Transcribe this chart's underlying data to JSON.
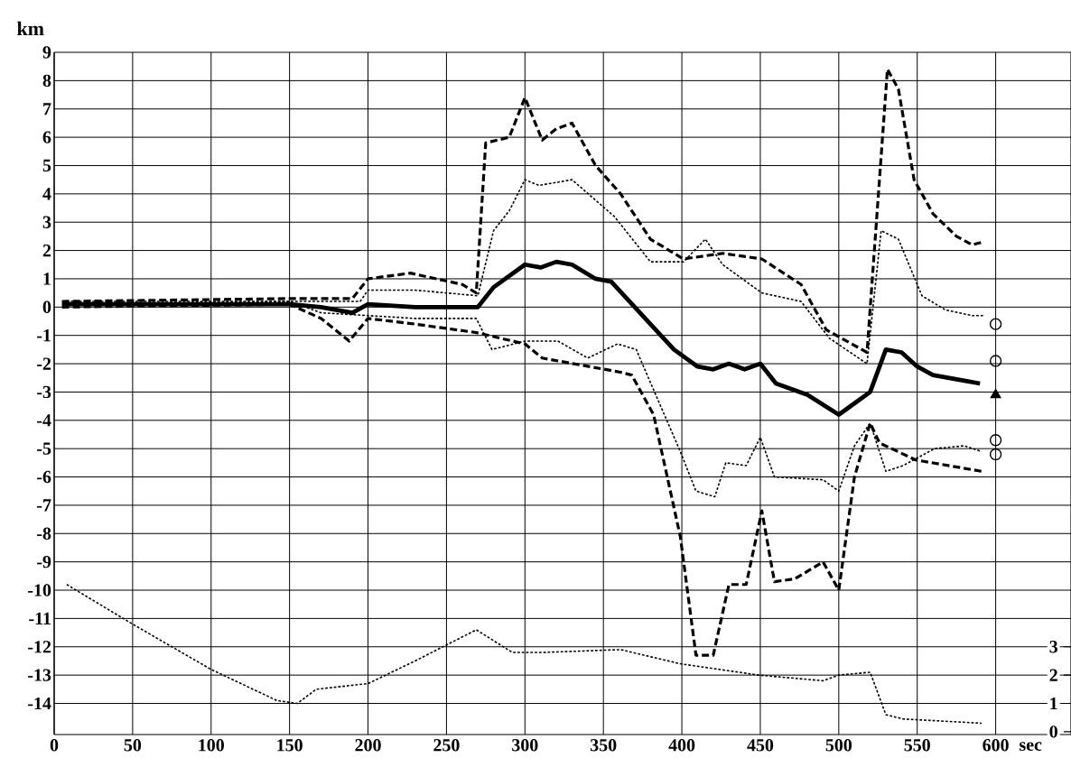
{
  "chart_data": {
    "type": "line",
    "xlabel": "sec",
    "ylabel": "km",
    "xlim": [
      0,
      648
    ],
    "ylim": [
      -15.1,
      9
    ],
    "y2lim": [
      -0.1,
      24
    ],
    "xticks": [
      0,
      50,
      100,
      150,
      200,
      250,
      300,
      350,
      400,
      450,
      500,
      550,
      600
    ],
    "yticks": [
      -14,
      -13,
      -12,
      -11,
      -10,
      -9,
      -8,
      -7,
      -6,
      -5,
      -4,
      -3,
      -2,
      -1,
      0,
      1,
      2,
      3,
      4,
      5,
      6,
      7,
      8,
      9
    ],
    "y2ticks": [
      0,
      1,
      2,
      3
    ],
    "grid": true,
    "series": [
      {
        "color": "#000000",
        "line_style": "solid",
        "x": [
          5,
          50,
          100,
          150,
          170,
          190,
          200,
          230,
          270,
          280,
          300,
          310,
          320,
          330,
          345,
          355,
          370,
          385,
          395,
          410,
          420,
          430,
          440,
          450,
          460,
          480,
          500,
          510,
          520,
          530,
          540,
          550,
          560,
          580,
          590
        ],
        "values": [
          0.1,
          0.1,
          0.1,
          0.1,
          0.0,
          -0.2,
          0.1,
          0.0,
          0.0,
          0.7,
          1.5,
          1.4,
          1.6,
          1.5,
          1.0,
          0.9,
          0.0,
          -0.9,
          -1.5,
          -2.1,
          -2.2,
          -2.0,
          -2.2,
          -2.0,
          -2.7,
          -3.1,
          -3.8,
          -3.4,
          -3.0,
          -1.5,
          -1.6,
          -2.1,
          -2.4,
          -2.6,
          -2.7
        ]
      },
      {
        "color": "#000000",
        "line_style": "dashed",
        "x": [
          5,
          150,
          190,
          200,
          227,
          260,
          269,
          275,
          290,
          300,
          311,
          320,
          330,
          345,
          361,
          380,
          401,
          426,
          451,
          476,
          492,
          518,
          531,
          538,
          548,
          560,
          575,
          585,
          592
        ],
        "values": [
          0.2,
          0.3,
          0.3,
          1.0,
          1.2,
          0.8,
          0.5,
          5.8,
          6.0,
          7.4,
          5.9,
          6.3,
          6.5,
          5.0,
          4.0,
          2.4,
          1.7,
          1.9,
          1.7,
          0.8,
          -0.8,
          -1.6,
          8.4,
          7.7,
          4.5,
          3.3,
          2.5,
          2.2,
          2.3
        ]
      },
      {
        "color": "#000000",
        "line_style": "dotted",
        "x": [
          5,
          195,
          200,
          230,
          270,
          280,
          290,
          300,
          309,
          330,
          357,
          380,
          401,
          415,
          426,
          451,
          476,
          494,
          518,
          527,
          538,
          553,
          568,
          585,
          592
        ],
        "values": [
          0.2,
          0.2,
          0.6,
          0.6,
          0.4,
          2.7,
          3.4,
          4.5,
          4.3,
          4.5,
          3.2,
          1.6,
          1.6,
          2.4,
          1.5,
          0.5,
          0.2,
          -1.1,
          -2.0,
          2.7,
          2.4,
          0.4,
          -0.1,
          -0.3,
          -0.3
        ]
      },
      {
        "color": "#000000",
        "line_style": "dashed",
        "x": [
          5,
          150,
          170,
          188,
          200,
          230,
          269,
          300,
          311,
          361,
          368,
          382,
          399,
          409,
          420,
          430,
          441,
          451,
          459,
          472,
          490,
          500,
          510,
          520,
          526,
          549,
          591
        ],
        "values": [
          0.0,
          0.1,
          -0.4,
          -1.2,
          -0.4,
          -0.6,
          -0.9,
          -1.3,
          -1.8,
          -2.3,
          -2.4,
          -3.8,
          -8.1,
          -12.3,
          -12.3,
          -9.8,
          -9.8,
          -7.2,
          -9.7,
          -9.6,
          -9.0,
          -10.0,
          -6.0,
          -4.1,
          -4.8,
          -5.4,
          -5.8
        ]
      },
      {
        "color": "#000000",
        "line_style": "dotted",
        "x": [
          5,
          150,
          170,
          200,
          230,
          269,
          279,
          300,
          321,
          340,
          359,
          371,
          374,
          399,
          409,
          421,
          428,
          441,
          450,
          459,
          490,
          500,
          510,
          520,
          530,
          541,
          561,
          580,
          591
        ],
        "values": [
          0.1,
          0.2,
          -0.2,
          -0.3,
          -0.4,
          -0.4,
          -1.5,
          -1.2,
          -1.2,
          -1.8,
          -1.3,
          -1.5,
          -1.9,
          -5.1,
          -6.5,
          -6.7,
          -5.5,
          -5.6,
          -4.6,
          -6.0,
          -6.1,
          -6.5,
          -4.9,
          -4.1,
          -5.8,
          -5.6,
          -5.0,
          -4.9,
          -5.1
        ]
      },
      {
        "color": "#000000",
        "line_style": "dotted",
        "axis": "y2",
        "x": [
          8,
          50,
          100,
          142,
          155,
          167,
          200,
          230,
          269,
          292,
          311,
          361,
          399,
          449,
          490,
          500,
          520,
          530,
          541,
          591
        ],
        "values": [
          5.2,
          3.8,
          2.2,
          1.1,
          1.0,
          1.5,
          1.7,
          2.5,
          3.6,
          2.8,
          2.8,
          2.9,
          2.4,
          2.0,
          1.8,
          2.0,
          2.1,
          0.6,
          0.45,
          0.3
        ]
      },
      {
        "type": "scatter",
        "color": "#000000",
        "marker": "circle",
        "x": [
          600,
          600,
          600,
          600
        ],
        "values": [
          -0.6,
          -1.9,
          -4.7,
          -5.2
        ]
      },
      {
        "type": "scatter",
        "color": "#000000",
        "marker": "triangle",
        "x": [
          600
        ],
        "values": [
          -3.1
        ]
      }
    ]
  }
}
